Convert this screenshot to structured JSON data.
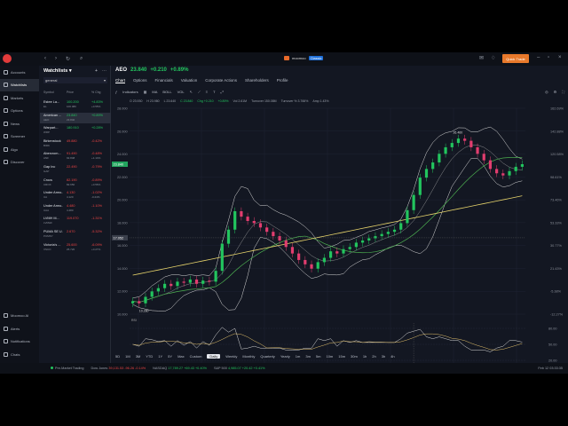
{
  "topbar": {
    "brand": "moomoo",
    "brand_badge": "Classic",
    "trade_label": "Quick Trade"
  },
  "sidebar": {
    "items": [
      {
        "label": "Accounts",
        "icon": "wallet-icon"
      },
      {
        "label": "Watchlists",
        "icon": "star-icon",
        "active": true
      },
      {
        "label": "Markets",
        "icon": "globe-icon"
      },
      {
        "label": "Options",
        "icon": "options-icon"
      },
      {
        "label": "News",
        "icon": "news-icon"
      },
      {
        "label": "Screener",
        "icon": "filter-icon"
      },
      {
        "label": "Algo",
        "icon": "algo-icon"
      },
      {
        "label": "Discover",
        "icon": "compass-icon"
      }
    ],
    "bottom_items": [
      {
        "label": "Moomoo AI",
        "icon": "ai-icon"
      },
      {
        "label": "Alerts",
        "icon": "bell-icon"
      },
      {
        "label": "Notifications",
        "icon": "notification-icon"
      },
      {
        "label": "Chats",
        "icon": "chat-icon"
      },
      {
        "label": "Community",
        "icon": "community-icon"
      }
    ]
  },
  "watchlist": {
    "title": "Watchlists",
    "group": "general",
    "headers": {
      "symbol": "Symbol",
      "price": "Price",
      "change": "% Chg"
    },
    "rows": [
      {
        "name": "Estee La...",
        "ticker": "EL",
        "price": "100.200",
        "price2": "100.080",
        "change": "+4.83%",
        "change2": "+0.55%",
        "dir": "up"
      },
      {
        "name": "American ...",
        "ticker": "AEO",
        "price": "23.840",
        "price2": "23.840",
        "change": "+0.89%",
        "change2": "",
        "dir": "up",
        "active": true
      },
      {
        "name": "Warpart...",
        "ticker": "WRP",
        "price": "180.910",
        "price2": "",
        "change": "+0.28%",
        "change2": "",
        "dir": "up"
      },
      {
        "name": "Birkenstock",
        "ticker": "BIRK",
        "price": "49.880",
        "price2": "",
        "change": "-0.42%",
        "change2": "",
        "dir": "dn"
      },
      {
        "name": "Abercrom...",
        "ticker": "ANF",
        "price": "91.490",
        "price2": "92.848",
        "change": "-0.48%",
        "change2": "+1.14%",
        "dir": "dn"
      },
      {
        "name": "Gap Inc",
        "ticker": "GAP",
        "price": "22.490",
        "price2": "",
        "change": "-0.79%",
        "change2": "",
        "dir": "dn"
      },
      {
        "name": "Crocs",
        "ticker": "CROX",
        "price": "82.190",
        "price2": "82.650",
        "change": "-0.89%",
        "change2": "+0.56%",
        "dir": "dn"
      },
      {
        "name": "Under Armo...",
        "ticker": "UA",
        "price": "4.130",
        "price2": "4.120",
        "change": "-1.02%",
        "change2": "-0.24%",
        "dir": "dn"
      },
      {
        "name": "Under Armo...",
        "ticker": "UAA",
        "price": "4.480",
        "price2": "4.480",
        "change": "-1.10%",
        "change2": "",
        "dir": "dn"
      },
      {
        "name": "LVMH M...",
        "ticker": "LVMHF",
        "price": "119.070",
        "price2": "",
        "change": "-1.31%",
        "change2": "",
        "dir": "dn"
      },
      {
        "name": "PUMA SE U...",
        "ticker": "PUMSY",
        "price": "2.670",
        "price2": "",
        "change": "-5.32%",
        "change2": "",
        "dir": "dn"
      },
      {
        "name": "Victoria's ...",
        "ticker": "VSCO",
        "price": "25.600",
        "price2": "25.720",
        "change": "-6.09%",
        "change2": "+0.27%",
        "dir": "dn"
      }
    ]
  },
  "chart_header": {
    "symbol": "AEO",
    "price": "23.840",
    "change": "+0.210",
    "change_pct": "+0.89%"
  },
  "tabs": [
    "Chart",
    "Options",
    "Financials",
    "Valuation",
    "Corporate Actions",
    "Shareholders",
    "Profile"
  ],
  "toolbar": {
    "indicators_label": "Indicators",
    "items": [
      "MA",
      "BOLL",
      "VOL"
    ]
  },
  "legend": {
    "items": [
      "O 23.930",
      "H 23.980",
      "L 23.640",
      "C 23.840",
      "Chg +0.210",
      "+0.89%",
      "Vol 2.61M",
      "Turnover 150.08M",
      "Turnover % 3.766%",
      "Amp 1.43%"
    ]
  },
  "rsi_label": "RSI",
  "range_buttons": [
    "5D",
    "1M",
    "3M",
    "YTD",
    "1Y",
    "5Y",
    "Max",
    "Custom",
    "Daily",
    "Weekly",
    "Monthly",
    "Quarterly",
    "Yearly",
    "1m",
    "3m",
    "5m",
    "10m",
    "15m",
    "30m",
    "1h",
    "2h",
    "3h",
    "4h"
  ],
  "range_selected": "Daily",
  "crosshair_date": "Wed, Dec 18, 2024",
  "status": {
    "session": "Pre-Market Trading",
    "indices": [
      {
        "name": "Dow Jones",
        "value": "39,131.53",
        "change": "-96.26",
        "pct": "-0.14%",
        "dir": "dn"
      },
      {
        "name": "NASDAQ",
        "value": "17,789.27",
        "change": "+69.43",
        "pct": "+0.40%",
        "dir": "up"
      },
      {
        "name": "S&P 500",
        "value": "4,985.07",
        "change": "+20.42",
        "pct": "+0.41%",
        "dir": "up"
      }
    ],
    "time": "Feb 12 03:33:35"
  },
  "chart_data": {
    "type": "candlestick",
    "x_ticks": [
      "Aug 2023",
      "Sep",
      "Oct",
      "Nov",
      "Dec",
      "Jan 2024",
      "Feb"
    ],
    "y_ticks": [
      "28.000",
      "26.000",
      "24.000",
      "22.000",
      "20.000",
      "18.000",
      "16.000",
      "14.000",
      "12.000",
      "10.000"
    ],
    "y_ticks_right": [
      "162.69%",
      "142.88%",
      "120.58%",
      "98.61%",
      "73.46%",
      "53.33%",
      "30.77%",
      "21.43%",
      "-5.38%",
      "-12.27%"
    ],
    "ylim": [
      10,
      29
    ],
    "current_price_label": "23.840",
    "crosshair_price_label": "17.052",
    "high_label": "26.460",
    "low_label": "10.280",
    "close_series": [
      11.2,
      11.0,
      11.6,
      12.1,
      12.4,
      12.8,
      12.6,
      13.0,
      12.9,
      13.2,
      12.8,
      13.1,
      13.0,
      14.0,
      16.5,
      17.8,
      19.5,
      19.0,
      18.6,
      18.4,
      18.0,
      17.6,
      17.2,
      16.8,
      16.2,
      15.6,
      15.0,
      14.6,
      14.2,
      14.8,
      15.2,
      15.8,
      15.6,
      16.0,
      16.2,
      16.6,
      16.8,
      17.0,
      17.2,
      17.4,
      17.6,
      17.8,
      18.4,
      19.6,
      21.0,
      22.6,
      23.4,
      24.0,
      24.8,
      25.4,
      25.8,
      26.2,
      26.0,
      25.4,
      24.8,
      24.2,
      23.4,
      23.0,
      22.8,
      23.2,
      23.6,
      23.84
    ],
    "rsi": {
      "ylim": [
        0,
        100
      ],
      "ticks": [
        "80.00",
        "50.00",
        "20.00"
      ]
    }
  }
}
